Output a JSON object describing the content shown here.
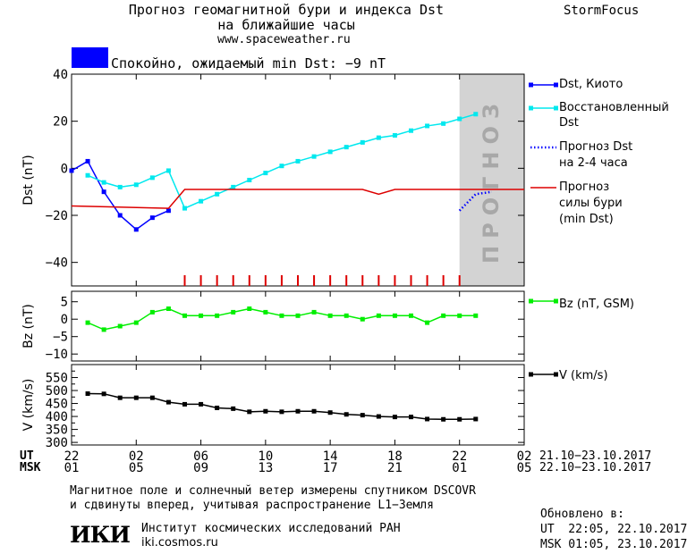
{
  "header": {
    "title_line1": "Прогноз геомагнитной бури и индекса Dst",
    "title_line2": "на ближайшие часы",
    "url": "www.spaceweather.ru",
    "brand": "StormFocus",
    "status_color": "#0000ff",
    "status_text": "Спокойно, ожидаемый min Dst: −9 nT"
  },
  "colors": {
    "dst_kyoto": "#0000ff",
    "dst_restored": "#00e8ee",
    "forecast_2_4h": "#0000ff",
    "storm_forecast": "#dd0000",
    "bz": "#00ee00",
    "v": "#000000",
    "forecast_band": "#d3d3d3",
    "forecast_band_text": "#a8a8a8"
  },
  "chart_data": [
    {
      "type": "line",
      "ylabel": "Dst (nT)",
      "ylim": [
        -50,
        40
      ],
      "yticks": [
        "40",
        "20",
        "0",
        "−20",
        "−40"
      ],
      "ytick_values": [
        40,
        20,
        0,
        -20,
        -40
      ],
      "xlim": [
        0,
        28
      ],
      "forecast_band": {
        "x_range": [
          24,
          28
        ],
        "label": "ПРОГНОЗ"
      },
      "series": [
        {
          "name": "Dst, Киото",
          "color_key": "dst_kyoto",
          "marker": "square",
          "x": [
            0,
            1,
            2,
            3,
            4,
            5,
            6
          ],
          "y": [
            -1,
            3,
            -10,
            -20,
            -26,
            -21,
            -18
          ]
        },
        {
          "name": "Восстановленный Dst",
          "color_key": "dst_restored",
          "marker": "square",
          "x": [
            1,
            2,
            3,
            4,
            5,
            6,
            7,
            8,
            9,
            10,
            11,
            12,
            13,
            14,
            15,
            16,
            17,
            18,
            19,
            20,
            21,
            22,
            23,
            24,
            25
          ],
          "y": [
            -3,
            -6,
            -8,
            -7,
            -4,
            -1,
            -17,
            -14,
            -11,
            -8,
            -5,
            -2,
            1,
            3,
            5,
            7,
            9,
            11,
            13,
            14,
            16,
            18,
            19,
            21,
            23
          ]
        },
        {
          "name": "Прогноз Dst на 2-4 часа",
          "color_key": "forecast_2_4h",
          "style": "dotted",
          "x": [
            24,
            25,
            26
          ],
          "y": [
            -18,
            -11,
            -10
          ]
        },
        {
          "name": "Прогноз силы бури (min Dst)",
          "color_key": "storm_forecast",
          "style": "solid",
          "x": [
            0,
            6,
            7,
            18,
            19,
            20,
            28
          ],
          "y": [
            -16,
            -17,
            -9,
            -9,
            -11,
            -9,
            -9
          ]
        }
      ],
      "storm_ticks_x": [
        7,
        8,
        9,
        10,
        11,
        12,
        13,
        14,
        15,
        16,
        17,
        18,
        19,
        20,
        21,
        22,
        23,
        24
      ]
    },
    {
      "type": "line",
      "ylabel": "Bz (nT)",
      "ylim": [
        -12,
        8
      ],
      "yticks": [
        "5",
        "0",
        "−5",
        "−10"
      ],
      "ytick_values": [
        5,
        0,
        -5,
        -10
      ],
      "xlim": [
        0,
        28
      ],
      "series": [
        {
          "name": "Bz (nT, GSM)",
          "color_key": "bz",
          "marker": "square",
          "x": [
            1,
            2,
            3,
            4,
            5,
            6,
            7,
            8,
            9,
            10,
            11,
            12,
            13,
            14,
            15,
            16,
            17,
            18,
            19,
            20,
            21,
            22,
            23,
            24,
            25
          ],
          "y": [
            -1,
            -3,
            -2,
            -1,
            2,
            3,
            1,
            1,
            1,
            2,
            3,
            2,
            1,
            1,
            2,
            1,
            1,
            0,
            1,
            1,
            1,
            -1,
            1,
            1,
            1
          ]
        }
      ]
    },
    {
      "type": "line",
      "ylabel": "V (km/s)",
      "ylim": [
        290,
        600
      ],
      "yticks": [
        "550",
        "500",
        "450",
        "400",
        "350",
        "300"
      ],
      "ytick_values": [
        550,
        500,
        450,
        400,
        350,
        300
      ],
      "minor_ytick_values": [
        575,
        525,
        475,
        425,
        375,
        325
      ],
      "xlim": [
        0,
        28
      ],
      "series": [
        {
          "name": "V (km/s)",
          "color_key": "v",
          "marker": "square",
          "x": [
            1,
            2,
            3,
            4,
            5,
            6,
            7,
            8,
            9,
            10,
            11,
            12,
            13,
            14,
            15,
            16,
            17,
            18,
            19,
            20,
            21,
            22,
            23,
            24,
            25
          ],
          "y": [
            488,
            487,
            472,
            472,
            472,
            455,
            447,
            447,
            433,
            430,
            418,
            420,
            418,
            420,
            420,
            415,
            408,
            405,
            400,
            398,
            398,
            390,
            389,
            389,
            390
          ]
        }
      ]
    }
  ],
  "x_axis": {
    "tick_x": [
      0,
      4,
      8,
      12,
      16,
      20,
      24,
      28
    ],
    "ut_label": "UT",
    "msk_label": "MSK",
    "ut_ticks": [
      "22",
      "02",
      "06",
      "10",
      "14",
      "18",
      "22",
      "02"
    ],
    "msk_ticks": [
      "01",
      "05",
      "09",
      "13",
      "17",
      "21",
      "01",
      "05"
    ],
    "ut_range": "21.10−23.10.2017",
    "msk_range": "22.10−23.10.2017"
  },
  "legend": {
    "dst_kyoto": "Dst, Киото",
    "restored_1": "Восстановленный",
    "restored_2": "Dst",
    "forecast_1": "Прогноз Dst",
    "forecast_2": "на 2-4 часа",
    "storm_1": "Прогноз",
    "storm_2": "силы бури",
    "storm_3": "(min Dst)",
    "bz": "Bz (nT, GSM)",
    "v": "V (km/s)"
  },
  "footer": {
    "note_line1": "Магнитное поле и солнечный ветер измерены спутником DSCOVR",
    "note_line2": "и сдвинуты вперед, учитывая распространение L1−Земля",
    "logo": "ИКИ",
    "institute": "Институт космических исследований РАН",
    "site": "iki.cosmos.ru",
    "updated_label": "Обновлено в:",
    "updated_ut": "UT  22:05, 22.10.2017",
    "updated_msk": "MSK 01:05, 23.10.2017"
  }
}
